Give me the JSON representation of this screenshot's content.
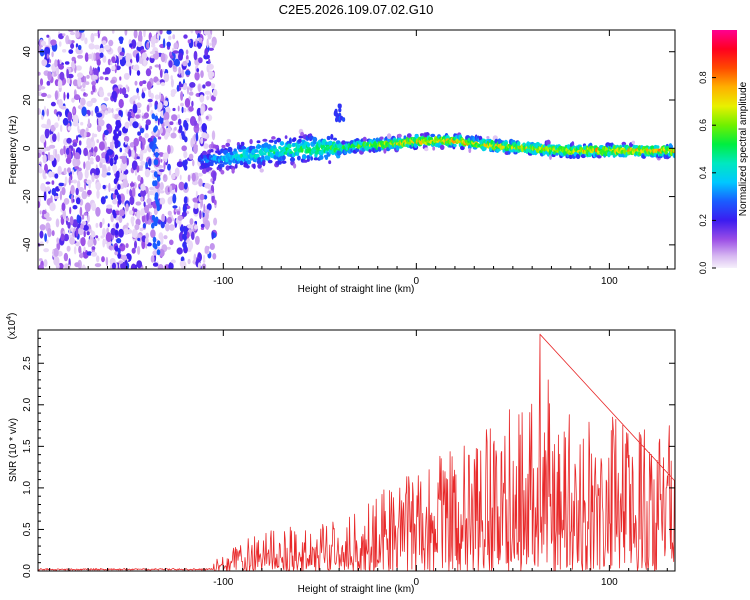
{
  "title": "C2E5.2026.109.07.02.G10",
  "colors": {
    "snr_line": "#e8292a",
    "frame": "#000000"
  },
  "chart_data": [
    {
      "id": "spectrogram",
      "type": "heatmap",
      "xlabel": "Height of straight line (km)",
      "ylabel": "Frequency (Hz)",
      "xlim": [
        -196,
        134
      ],
      "ylim": [
        -50,
        49
      ],
      "xticks": [
        -100,
        0,
        100
      ],
      "yticks": [
        -40,
        -20,
        0,
        20,
        40
      ],
      "colorbar": {
        "label": "Normalized spectral amplitude",
        "range": [
          0.0,
          1.0
        ],
        "ticks": [
          0.0,
          0.2,
          0.4,
          0.6,
          0.8
        ],
        "tick_labels": [
          "0.0",
          "0.2",
          "0.4",
          "0.6",
          "0.8"
        ],
        "colormap": "rainbow (purple-blue-cyan-green-yellow-red-magenta)"
      },
      "ridge": {
        "x": [
          -108,
          -90,
          -70,
          -50,
          -40,
          -30,
          -10,
          0,
          20,
          40,
          60,
          80,
          100,
          120,
          134
        ],
        "frequency": [
          -5,
          -3,
          -1,
          0,
          0,
          1,
          2,
          3,
          3,
          1,
          0,
          -1,
          -1,
          -1,
          -1
        ],
        "amplitude": [
          0.3,
          0.45,
          0.5,
          0.55,
          0.55,
          0.6,
          0.7,
          0.75,
          0.75,
          0.7,
          0.7,
          0.72,
          0.75,
          0.75,
          0.75
        ]
      },
      "noise_region_x": [
        -196,
        -108
      ],
      "spike": {
        "x": -40,
        "frequency_range": [
          10,
          18
        ]
      }
    },
    {
      "id": "snr",
      "type": "line",
      "xlabel": "Height of straight line (km)",
      "ylabel": "SNR (10 * v/v)",
      "scale_label": "(x10",
      "scale_exponent": "4",
      "xlim": [
        -196,
        134
      ],
      "ylim": [
        0.0,
        2.9
      ],
      "xticks": [
        -100,
        0,
        100
      ],
      "yticks": [
        0.0,
        0.5,
        1.0,
        1.5,
        2.0,
        2.5
      ],
      "ytick_labels": [
        "0.0",
        "0.5",
        "1.0",
        "1.5",
        "2.0",
        "2.5"
      ],
      "envelope": {
        "x": [
          -196,
          -110,
          -100,
          -90,
          -80,
          -60,
          -40,
          -30,
          -20,
          -10,
          0,
          10,
          20,
          30,
          40,
          50,
          60,
          64,
          70,
          80,
          90,
          100,
          110,
          120,
          134
        ],
        "max": [
          0.03,
          0.04,
          0.2,
          0.35,
          0.5,
          0.55,
          0.6,
          0.8,
          1.0,
          1.0,
          1.35,
          1.5,
          1.5,
          1.6,
          1.85,
          2.0,
          2.3,
          2.85,
          2.1,
          1.9,
          1.8,
          2.1,
          1.7,
          1.8,
          1.8
        ]
      },
      "peak": {
        "x": 64,
        "y": 2.85
      }
    }
  ]
}
